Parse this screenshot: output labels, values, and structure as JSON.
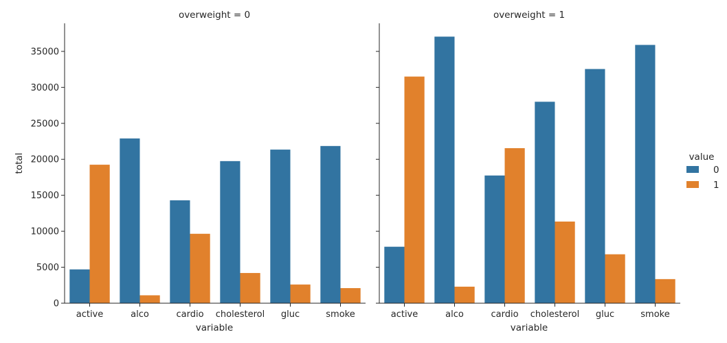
{
  "chart_data": {
    "type": "bar",
    "xlabel": "variable",
    "ylabel": "total",
    "categories": [
      "active",
      "alco",
      "cardio",
      "cholesterol",
      "gluc",
      "smoke"
    ],
    "ylim": [
      0,
      38900
    ],
    "yticks": [
      0,
      5000,
      10000,
      15000,
      20000,
      25000,
      30000,
      35000
    ],
    "legend": {
      "title": "value",
      "position": "right",
      "entries": [
        "0",
        "1"
      ]
    },
    "colors": {
      "0": "#3274a1",
      "1": "#e1812c"
    },
    "panels": [
      {
        "title": "overweight = 0",
        "series": [
          {
            "name": "0",
            "values": [
              4700,
              22900,
              14300,
              19750,
              21350,
              21850
            ]
          },
          {
            "name": "1",
            "values": [
              19250,
              1100,
              9650,
              4200,
              2600,
              2100
            ]
          }
        ]
      },
      {
        "title": "overweight = 1",
        "series": [
          {
            "name": "0",
            "values": [
              7850,
              37050,
              17750,
              28000,
              32550,
              35900
            ]
          },
          {
            "name": "1",
            "values": [
              31500,
              2300,
              21550,
              11350,
              6800,
              3350
            ]
          }
        ]
      }
    ]
  }
}
